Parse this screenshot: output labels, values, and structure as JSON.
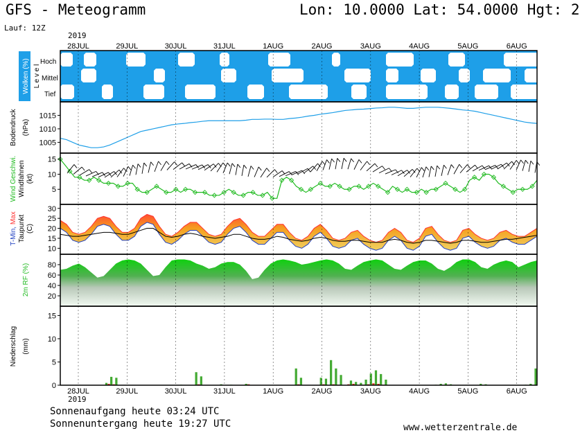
{
  "header": {
    "title": "GFS - Meteogramm",
    "coords": "Lon: 10.0000 Lat: 54.0000 Hgt: 2",
    "run": "Lauf: 12Z",
    "year": "2019"
  },
  "footer": {
    "sunrise": "Sonnenaufgang heute 03:24 UTC",
    "sunset": "Sonnenuntergang heute 19:27 UTC",
    "website": "www.wetterzentrale.de"
  },
  "colors": {
    "cloud_sky": "#1e9fe8",
    "cloud_white": "#ffffff",
    "pressure_line": "#1e9fe8",
    "wind_line": "#22bb22",
    "temp_fill": "#f0a020",
    "temp_max": "#ff3030",
    "temp_min": "#2040c0",
    "dewpoint": "#000000",
    "rh_fill": "#22c022",
    "precip_green": "#44aa33",
    "precip_red": "#dd3322"
  },
  "chart_data": {
    "type": "meteogram",
    "x_ticks": [
      "28JUL",
      "29JUL",
      "30JUL",
      "31JUL",
      "1AUG",
      "2AUG",
      "3AUG",
      "4AUG",
      "5AUG",
      "6AUG"
    ],
    "panels": [
      {
        "id": "clouds",
        "ylabel": "Wolken (%)",
        "level_label": "L e v e l",
        "levels": [
          "Hoch",
          "Mittel",
          "Tief"
        ],
        "ticks": []
      },
      {
        "id": "pressure",
        "ylabel": "Bodendruck",
        "unit": "(hPa)",
        "ylim": [
          1001,
          1020
        ],
        "ticks": [
          1005,
          1010,
          1015
        ],
        "values": [
          1006.5,
          1006,
          1005,
          1004,
          1003.5,
          1003,
          1003,
          1003.3,
          1004,
          1005,
          1006,
          1007,
          1008,
          1009,
          1009.5,
          1010,
          1010.5,
          1011,
          1011.5,
          1011.8,
          1012,
          1012.3,
          1012.5,
          1012.8,
          1013,
          1013,
          1013,
          1013,
          1013,
          1013,
          1013.2,
          1013.5,
          1013.5,
          1013.6,
          1013.6,
          1013.5,
          1013.5,
          1013.8,
          1014,
          1014.3,
          1014.7,
          1015,
          1015.4,
          1015.7,
          1016,
          1016.4,
          1016.8,
          1017,
          1017.2,
          1017.3,
          1017.5,
          1017.7,
          1017.8,
          1018,
          1018,
          1017.8,
          1017.6,
          1017.6,
          1017.8,
          1018,
          1018,
          1018,
          1017.8,
          1017.6,
          1017.3,
          1017,
          1016.8,
          1016.5,
          1016,
          1015.5,
          1015,
          1014.5,
          1014,
          1013.5,
          1013,
          1012.5,
          1012.2,
          1012
        ]
      },
      {
        "id": "wind",
        "ylabel": "Wind Geschwi.",
        "ylabel2": "Windfahnen",
        "unit": "(kt)",
        "ylim": [
          0,
          17
        ],
        "ticks": [
          5,
          10,
          15
        ],
        "values": [
          15,
          13,
          11,
          9,
          9,
          8,
          8,
          9,
          8,
          7,
          7,
          7,
          6,
          6,
          7,
          7,
          5,
          4,
          4,
          5,
          6,
          5,
          4,
          4,
          5,
          4,
          5,
          5,
          4,
          4,
          4,
          3,
          3,
          3,
          4,
          5,
          4,
          3,
          3,
          4,
          4,
          3,
          3,
          4,
          2,
          2,
          8,
          9,
          8,
          6,
          5,
          4,
          5,
          6,
          7,
          6,
          6,
          7,
          6,
          5,
          5,
          6,
          6,
          5,
          6,
          7,
          6,
          5,
          4,
          6,
          5,
          4,
          5,
          4,
          4,
          5,
          4,
          5,
          5,
          6,
          7,
          6,
          5,
          4,
          5,
          8,
          9,
          8,
          10,
          10,
          9,
          7,
          6,
          5,
          4,
          5,
          5,
          5,
          6,
          8
        ]
      },
      {
        "id": "temperature",
        "ylabel": "T-Min, Max",
        "ylabel2": "Taupunkt",
        "unit": "(C)",
        "ylim": [
          7,
          32
        ],
        "ticks": [
          10,
          15,
          20,
          25,
          30
        ],
        "values": [
          24,
          22,
          18,
          17,
          18,
          21,
          25,
          26,
          25,
          21,
          18,
          18,
          20,
          25,
          27,
          26,
          21,
          17,
          16,
          18,
          21,
          23,
          23,
          20,
          17,
          16,
          17,
          21,
          24,
          25,
          22,
          18,
          16,
          16,
          19,
          22,
          22,
          18,
          15,
          14,
          16,
          20,
          22,
          19,
          15,
          14,
          15,
          18,
          19,
          16,
          14,
          13,
          14,
          18,
          20,
          18,
          14,
          13,
          15,
          20,
          21,
          17,
          14,
          13,
          14,
          19,
          20,
          17,
          15,
          14,
          15,
          18,
          19,
          17,
          16,
          16,
          18,
          20
        ],
        "dewpoint": [
          17,
          16.5,
          16,
          16,
          16.5,
          17,
          17.5,
          18,
          18,
          17.5,
          17,
          17,
          18,
          19,
          20,
          20,
          18,
          16,
          15.5,
          16,
          17,
          17.5,
          17,
          16,
          15.5,
          15,
          15.5,
          16,
          17,
          17,
          16,
          15,
          14.5,
          14.5,
          15,
          16,
          15.5,
          14.5,
          14,
          13.5,
          14,
          15,
          15.5,
          15,
          14,
          13.5,
          13.5,
          14,
          14,
          13.5,
          13,
          13,
          13,
          14,
          14.5,
          14,
          13,
          12.5,
          13,
          14,
          14,
          13.5,
          13,
          12.5,
          13,
          14,
          14,
          13.5,
          13,
          13,
          13.5,
          14,
          14.5,
          14.5,
          15,
          15.5,
          16,
          16.5
        ]
      },
      {
        "id": "humidity",
        "ylabel": "2m RF (%)",
        "ylim": [
          0,
          100
        ],
        "ticks": [
          20,
          40,
          60,
          80
        ],
        "values": [
          70,
          72,
          78,
          82,
          75,
          65,
          55,
          58,
          70,
          82,
          88,
          90,
          88,
          82,
          70,
          58,
          60,
          75,
          88,
          90,
          90,
          88,
          82,
          78,
          72,
          75,
          82,
          85,
          85,
          80,
          68,
          52,
          55,
          70,
          82,
          88,
          90,
          88,
          85,
          80,
          82,
          85,
          88,
          90,
          88,
          82,
          72,
          70,
          78,
          85,
          88,
          90,
          88,
          80,
          72,
          70,
          78,
          85,
          88,
          88,
          82,
          72,
          68,
          75,
          85,
          90,
          90,
          85,
          75,
          72,
          80,
          85,
          88,
          85,
          75,
          80,
          85,
          88
        ]
      },
      {
        "id": "precip",
        "ylabel": "Niederschlag",
        "unit": "(mm)",
        "ylim": [
          0,
          17
        ],
        "ticks": [
          0,
          5,
          10,
          15
        ],
        "values": [
          0,
          0,
          0,
          0,
          0,
          0,
          0,
          0,
          0,
          0,
          0,
          0,
          0,
          0,
          0,
          0,
          0,
          0,
          0.5,
          0.3,
          1.8,
          0.2,
          1.6,
          0,
          0,
          0,
          0,
          0,
          0,
          0,
          0,
          0,
          0,
          0,
          0,
          0,
          0,
          0,
          0,
          0,
          0,
          0,
          0,
          0,
          0,
          0,
          0,
          0,
          0.1,
          0,
          0,
          0,
          0,
          0,
          2.8,
          0.2,
          1.9,
          0,
          0,
          0,
          0,
          0,
          0,
          0,
          0.2,
          0,
          0,
          0,
          0.1,
          0,
          0,
          0,
          0,
          0,
          0.3,
          0.2,
          0,
          0,
          0,
          0,
          0,
          0,
          0,
          0,
          0,
          0,
          0,
          0,
          0,
          0,
          0,
          0,
          0,
          0,
          3.6,
          0.2,
          1.6,
          0,
          0,
          0,
          0,
          0,
          0,
          0,
          1.6,
          0.2,
          1.4,
          0,
          5.4,
          0.2,
          3.6,
          0.1,
          2.2,
          0,
          0,
          0.2,
          1.0,
          0.3,
          0.7,
          0.1,
          0.5,
          0.1,
          1.2,
          0.2,
          2.5,
          0.4,
          3.2,
          0.3,
          2.4,
          0.1,
          1.2,
          0,
          0,
          0,
          0,
          0,
          0,
          0,
          0,
          0,
          0,
          0,
          0,
          0,
          0,
          0,
          0,
          0,
          0,
          0,
          0.1,
          0,
          0.3,
          0,
          0.4,
          0.1,
          0.2,
          0,
          0,
          0,
          0,
          0,
          0,
          0,
          0,
          0,
          0,
          0,
          0.3,
          0,
          0.2,
          0,
          0,
          0,
          0,
          0,
          0,
          0,
          0,
          0,
          0,
          0,
          0,
          0,
          0,
          0,
          0.1,
          0,
          0.3,
          0,
          3.6
        ]
      }
    ]
  }
}
